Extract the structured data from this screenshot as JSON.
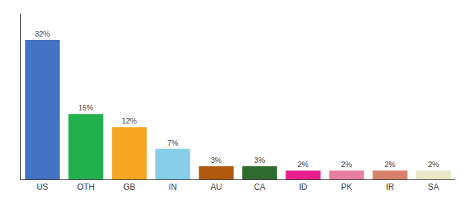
{
  "chart_data": {
    "type": "bar",
    "categories": [
      "US",
      "OTH",
      "GB",
      "IN",
      "AU",
      "CA",
      "ID",
      "PK",
      "IR",
      "SA"
    ],
    "values": [
      32,
      15,
      12,
      7,
      3,
      3,
      2,
      2,
      2,
      2
    ],
    "value_labels": [
      "32%",
      "15%",
      "12%",
      "7%",
      "3%",
      "3%",
      "2%",
      "2%",
      "2%",
      "2%"
    ],
    "colors": [
      "#4472c4",
      "#22b14c",
      "#f5a623",
      "#87ceeb",
      "#b05a10",
      "#2e6b2e",
      "#e91e8c",
      "#e87fa0",
      "#d9806a",
      "#e8e8c8"
    ],
    "ylim": [
      0,
      38
    ],
    "grid": false,
    "data_labels": true,
    "tick_labels": "x"
  }
}
